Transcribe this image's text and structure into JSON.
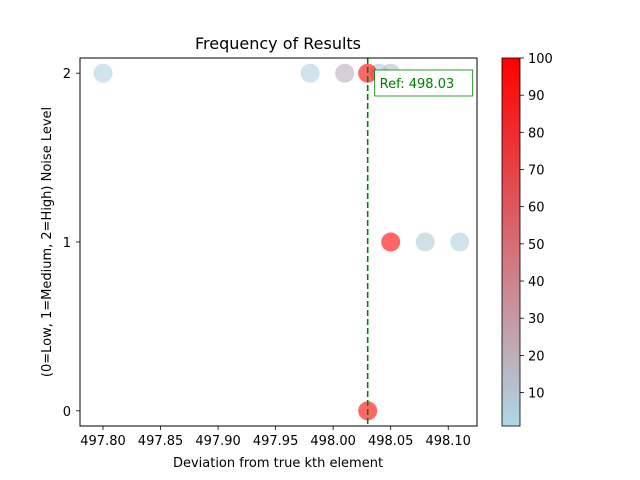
{
  "chart_data": {
    "type": "scatter",
    "title": "Frequency of Results",
    "xlabel": "Deviation from true kth element",
    "ylabel": "(0=Low, 1=Medium, 2=High) Noise Level",
    "xlim": [
      497.78,
      498.125
    ],
    "ylim": [
      -0.09,
      2.09
    ],
    "x_ticks": [
      497.8,
      497.85,
      497.9,
      497.95,
      498.0,
      498.05,
      498.1
    ],
    "x_tick_labels": [
      "497.80",
      "497.85",
      "497.90",
      "497.95",
      "498.00",
      "498.05",
      "498.10"
    ],
    "y_ticks": [
      0,
      1,
      2
    ],
    "y_tick_labels": [
      "0",
      "1",
      "2"
    ],
    "grid": false,
    "points": [
      {
        "x": 497.8,
        "y": 2,
        "c": 3
      },
      {
        "x": 497.98,
        "y": 2,
        "c": 5
      },
      {
        "x": 498.01,
        "y": 2,
        "c": 20
      },
      {
        "x": 498.04,
        "y": 2,
        "c": 8
      },
      {
        "x": 498.05,
        "y": 2,
        "c": 12
      },
      {
        "x": 498.03,
        "y": 2,
        "c": 100
      },
      {
        "x": 498.05,
        "y": 1,
        "c": 100
      },
      {
        "x": 498.08,
        "y": 1,
        "c": 8
      },
      {
        "x": 498.11,
        "y": 1,
        "c": 5
      },
      {
        "x": 498.03,
        "y": 0,
        "c": 100
      }
    ],
    "reference_line": {
      "x": 498.03,
      "label": "Ref: 498.03",
      "color": "#008000"
    },
    "colorbar": {
      "range": [
        1,
        100
      ],
      "ticks": [
        10,
        20,
        30,
        40,
        50,
        60,
        70,
        80,
        90,
        100
      ],
      "tick_labels": [
        "10",
        "20",
        "30",
        "40",
        "50",
        "60",
        "70",
        "80",
        "90",
        "100"
      ],
      "color_low": "#add8e6",
      "color_high": "#ff0000"
    },
    "marker_alpha": 0.6
  }
}
